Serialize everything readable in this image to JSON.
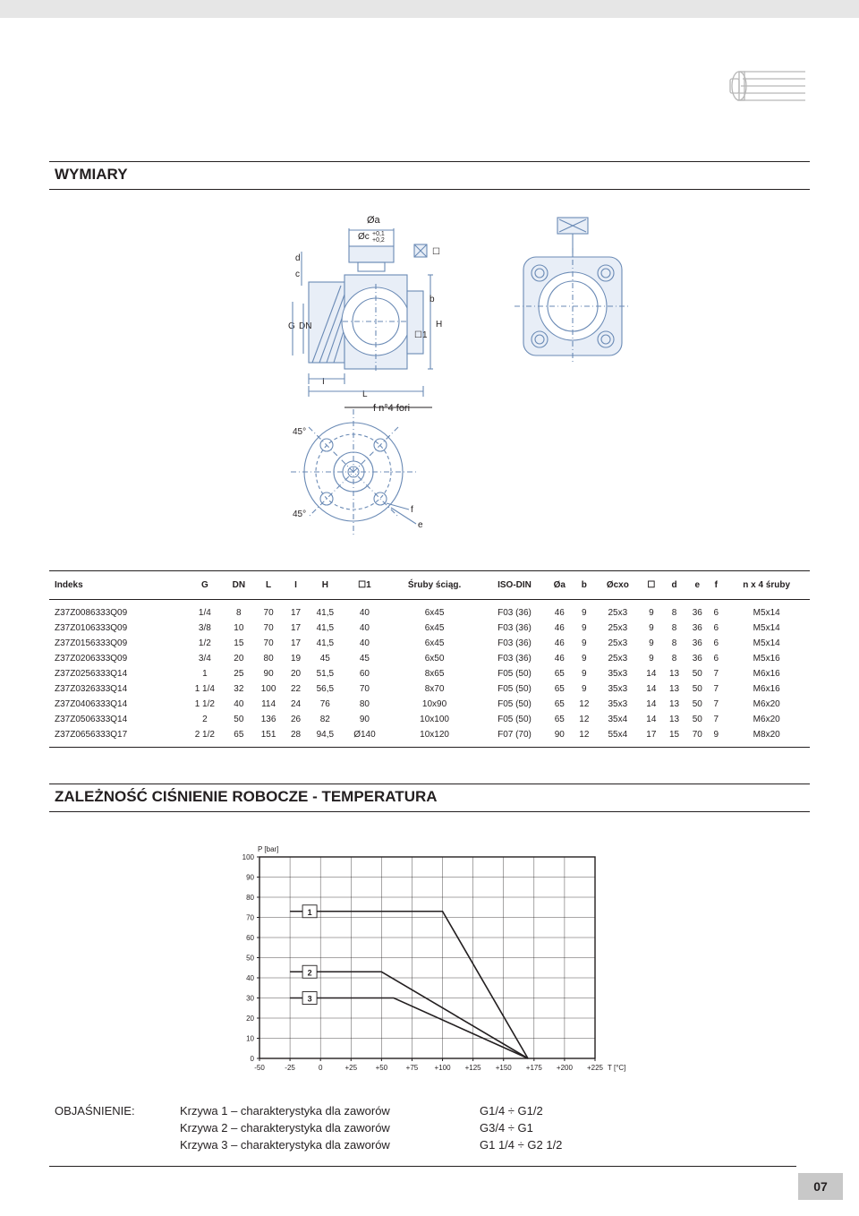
{
  "sections": {
    "wymiary": "WYMIARY",
    "chart_title": "ZALEŻNOŚĆ CIŚNIENIE ROBOCZE - TEMPERATURA"
  },
  "table": {
    "columns": [
      "Indeks",
      "G",
      "DN",
      "L",
      "I",
      "H",
      "☐1",
      "Śruby ściąg.",
      "ISO-DIN",
      "Øa",
      "b",
      "Øcxo",
      "☐",
      "d",
      "e",
      "f",
      "n x 4 śruby"
    ],
    "rows": [
      [
        "Z37Z0086333Q09",
        "1/4",
        "8",
        "70",
        "17",
        "41,5",
        "40",
        "6x45",
        "F03 (36)",
        "46",
        "9",
        "25x3",
        "9",
        "8",
        "36",
        "6",
        "M5x14"
      ],
      [
        "Z37Z0106333Q09",
        "3/8",
        "10",
        "70",
        "17",
        "41,5",
        "40",
        "6x45",
        "F03 (36)",
        "46",
        "9",
        "25x3",
        "9",
        "8",
        "36",
        "6",
        "M5x14"
      ],
      [
        "Z37Z0156333Q09",
        "1/2",
        "15",
        "70",
        "17",
        "41,5",
        "40",
        "6x45",
        "F03 (36)",
        "46",
        "9",
        "25x3",
        "9",
        "8",
        "36",
        "6",
        "M5x14"
      ],
      [
        "Z37Z0206333Q09",
        "3/4",
        "20",
        "80",
        "19",
        "45",
        "45",
        "6x50",
        "F03 (36)",
        "46",
        "9",
        "25x3",
        "9",
        "8",
        "36",
        "6",
        "M5x16"
      ],
      [
        "Z37Z0256333Q14",
        "1",
        "25",
        "90",
        "20",
        "51,5",
        "60",
        "8x65",
        "F05 (50)",
        "65",
        "9",
        "35x3",
        "14",
        "13",
        "50",
        "7",
        "M6x16"
      ],
      [
        "Z37Z0326333Q14",
        "1 1/4",
        "32",
        "100",
        "22",
        "56,5",
        "70",
        "8x70",
        "F05 (50)",
        "65",
        "9",
        "35x3",
        "14",
        "13",
        "50",
        "7",
        "M6x16"
      ],
      [
        "Z37Z0406333Q14",
        "1 1/2",
        "40",
        "114",
        "24",
        "76",
        "80",
        "10x90",
        "F05 (50)",
        "65",
        "12",
        "35x3",
        "14",
        "13",
        "50",
        "7",
        "M6x20"
      ],
      [
        "Z37Z0506333Q14",
        "2",
        "50",
        "136",
        "26",
        "82",
        "90",
        "10x100",
        "F05 (50)",
        "65",
        "12",
        "35x4",
        "14",
        "13",
        "50",
        "7",
        "M6x20"
      ],
      [
        "Z37Z0656333Q17",
        "2 1/2",
        "65",
        "151",
        "28",
        "94,5",
        "Ø140",
        "10x120",
        "F07 (70)",
        "90",
        "12",
        "55x4",
        "17",
        "15",
        "70",
        "9",
        "M8x20"
      ]
    ]
  },
  "chart": {
    "y_label": "P [bar]",
    "x_label": "T [°C]",
    "ylim": [
      0,
      100
    ],
    "ytick_step": 10,
    "xlim": [
      -50,
      225
    ],
    "xtick_step": 25,
    "grid_color": "#231f20",
    "line_color": "#231f20",
    "background_color": "#ffffff",
    "series": [
      {
        "label": "1",
        "points": [
          [
            -25,
            73
          ],
          [
            100,
            73
          ],
          [
            170,
            0
          ]
        ]
      },
      {
        "label": "2",
        "points": [
          [
            -25,
            43
          ],
          [
            50,
            43
          ],
          [
            170,
            0
          ]
        ]
      },
      {
        "label": "3",
        "points": [
          [
            -25,
            30
          ],
          [
            60,
            30
          ],
          [
            170,
            0
          ]
        ]
      }
    ],
    "series_label_fontsize": 9,
    "axis_fontsize": 8
  },
  "legend": {
    "heading": "OBJAŚNIENIE:",
    "lines": [
      {
        "text": "Krzywa 1 – charakterystyka dla zaworów",
        "range": "G1/4   ÷ G1/2"
      },
      {
        "text": "Krzywa 2 – charakterystyka dla zaworów",
        "range": "G3/4   ÷ G1"
      },
      {
        "text": "Krzywa 3 – charakterystyka dla zaworów",
        "range": "G1 1/4 ÷ G2 1/2"
      }
    ]
  },
  "page_number": "07"
}
